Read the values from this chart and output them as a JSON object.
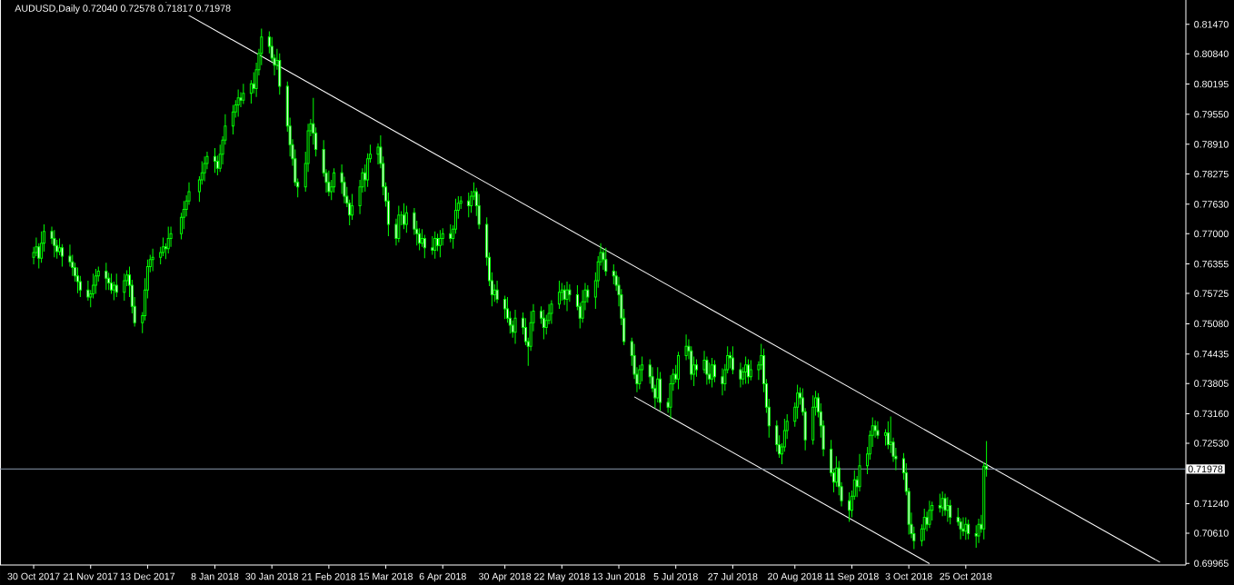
{
  "chart_data": {
    "type": "candlestick",
    "title": "AUDUSD,Daily 0.72040 0.72578 0.71817 0.71978",
    "color": "#00ff00",
    "x": [
      "2017-10-30",
      "2017-10-31",
      "2017-11-01",
      "2017-11-02",
      "2017-11-03",
      "2017-11-06",
      "2017-11-07",
      "2017-11-08",
      "2017-11-09",
      "2017-11-10",
      "2017-11-13",
      "2017-11-14",
      "2017-11-15",
      "2017-11-16",
      "2017-11-17",
      "2017-11-20",
      "2017-11-21",
      "2017-11-22",
      "2017-11-23",
      "2017-11-24",
      "2017-11-27",
      "2017-11-28",
      "2017-11-29",
      "2017-11-30",
      "2017-12-01",
      "2017-12-04",
      "2017-12-05",
      "2017-12-06",
      "2017-12-07",
      "2017-12-08",
      "2017-12-11",
      "2017-12-12",
      "2017-12-13",
      "2017-12-14",
      "2017-12-15",
      "2017-12-18",
      "2017-12-19",
      "2017-12-20",
      "2017-12-21",
      "2017-12-22",
      "2017-12-26",
      "2017-12-27",
      "2017-12-28",
      "2017-12-29",
      "2018-01-02",
      "2018-01-03",
      "2018-01-04",
      "2018-01-05",
      "2018-01-08",
      "2018-01-09",
      "2018-01-10",
      "2018-01-11",
      "2018-01-12",
      "2018-01-15",
      "2018-01-16",
      "2018-01-17",
      "2018-01-18",
      "2018-01-19",
      "2018-01-22",
      "2018-01-23",
      "2018-01-24",
      "2018-01-25",
      "2018-01-26",
      "2018-01-29",
      "2018-01-30",
      "2018-01-31",
      "2018-02-01",
      "2018-02-02",
      "2018-02-05",
      "2018-02-06",
      "2018-02-07",
      "2018-02-08",
      "2018-02-09",
      "2018-02-12",
      "2018-02-13",
      "2018-02-14",
      "2018-02-15",
      "2018-02-16",
      "2018-02-19",
      "2018-02-20",
      "2018-02-21",
      "2018-02-22",
      "2018-02-23",
      "2018-02-26",
      "2018-02-27",
      "2018-02-28",
      "2018-03-01",
      "2018-03-02",
      "2018-03-05",
      "2018-03-06",
      "2018-03-07",
      "2018-03-08",
      "2018-03-09",
      "2018-03-12",
      "2018-03-13",
      "2018-03-14",
      "2018-03-15",
      "2018-03-16",
      "2018-03-19",
      "2018-03-20",
      "2018-03-21",
      "2018-03-22",
      "2018-03-23",
      "2018-03-26",
      "2018-03-27",
      "2018-03-28",
      "2018-03-29",
      "2018-03-30",
      "2018-04-02",
      "2018-04-03",
      "2018-04-04",
      "2018-04-05",
      "2018-04-06",
      "2018-04-09",
      "2018-04-10",
      "2018-04-11",
      "2018-04-12",
      "2018-04-13",
      "2018-04-16",
      "2018-04-17",
      "2018-04-18",
      "2018-04-19",
      "2018-04-20",
      "2018-04-23",
      "2018-04-24",
      "2018-04-25",
      "2018-04-26",
      "2018-04-27",
      "2018-04-30",
      "2018-05-01",
      "2018-05-02",
      "2018-05-03",
      "2018-05-04",
      "2018-05-07",
      "2018-05-08",
      "2018-05-09",
      "2018-05-10",
      "2018-05-11",
      "2018-05-14",
      "2018-05-15",
      "2018-05-16",
      "2018-05-17",
      "2018-05-18",
      "2018-05-21",
      "2018-05-22",
      "2018-05-23",
      "2018-05-24",
      "2018-05-25",
      "2018-05-28",
      "2018-05-29",
      "2018-05-30",
      "2018-05-31",
      "2018-06-01",
      "2018-06-04",
      "2018-06-05",
      "2018-06-06",
      "2018-06-07",
      "2018-06-08",
      "2018-06-11",
      "2018-06-12",
      "2018-06-13",
      "2018-06-14",
      "2018-06-15",
      "2018-06-18",
      "2018-06-19",
      "2018-06-20",
      "2018-06-21",
      "2018-06-22",
      "2018-06-25",
      "2018-06-26",
      "2018-06-27",
      "2018-06-28",
      "2018-06-29",
      "2018-07-02",
      "2018-07-03",
      "2018-07-04",
      "2018-07-05",
      "2018-07-06",
      "2018-07-09",
      "2018-07-10",
      "2018-07-11",
      "2018-07-12",
      "2018-07-13",
      "2018-07-16",
      "2018-07-17",
      "2018-07-18",
      "2018-07-19",
      "2018-07-20",
      "2018-07-23",
      "2018-07-24",
      "2018-07-25",
      "2018-07-26",
      "2018-07-27",
      "2018-07-30",
      "2018-07-31",
      "2018-08-01",
      "2018-08-02",
      "2018-08-03",
      "2018-08-06",
      "2018-08-07",
      "2018-08-08",
      "2018-08-09",
      "2018-08-10",
      "2018-08-13",
      "2018-08-14",
      "2018-08-15",
      "2018-08-16",
      "2018-08-17",
      "2018-08-20",
      "2018-08-21",
      "2018-08-22",
      "2018-08-23",
      "2018-08-24",
      "2018-08-27",
      "2018-08-28",
      "2018-08-29",
      "2018-08-30",
      "2018-08-31",
      "2018-09-03",
      "2018-09-04",
      "2018-09-05",
      "2018-09-06",
      "2018-09-07",
      "2018-09-10",
      "2018-09-11",
      "2018-09-12",
      "2018-09-13",
      "2018-09-14",
      "2018-09-17",
      "2018-09-18",
      "2018-09-19",
      "2018-09-20",
      "2018-09-21",
      "2018-09-24",
      "2018-09-25",
      "2018-09-26",
      "2018-09-27",
      "2018-09-28",
      "2018-10-01",
      "2018-10-02",
      "2018-10-03",
      "2018-10-04",
      "2018-10-05",
      "2018-10-08",
      "2018-10-09",
      "2018-10-10",
      "2018-10-11",
      "2018-10-12",
      "2018-10-15",
      "2018-10-16",
      "2018-10-17",
      "2018-10-18",
      "2018-10-19",
      "2018-10-22",
      "2018-10-23",
      "2018-10-24",
      "2018-10-25",
      "2018-10-26",
      "2018-10-29",
      "2018-10-30",
      "2018-10-31",
      "2018-11-01",
      "2018-11-02"
    ],
    "ohlc": [
      [
        0.765,
        0.7672,
        0.7635,
        0.766
      ],
      [
        0.766,
        0.7692,
        0.7652,
        0.7672
      ],
      [
        0.7672,
        0.768,
        0.7626,
        0.7648
      ],
      [
        0.7648,
        0.7705,
        0.7638,
        0.768
      ],
      [
        0.768,
        0.772,
        0.7662,
        0.7705
      ],
      [
        0.7705,
        0.7715,
        0.7678,
        0.769
      ],
      [
        0.769,
        0.7708,
        0.765,
        0.7675
      ],
      [
        0.7675,
        0.7687,
        0.7647,
        0.7662
      ],
      [
        0.7662,
        0.769,
        0.7654,
        0.767
      ],
      [
        0.767,
        0.7678,
        0.763,
        0.7652
      ],
      [
        0.7652,
        0.7677,
        0.763,
        0.764
      ],
      [
        0.764,
        0.7655,
        0.761,
        0.7628
      ],
      [
        0.7628,
        0.7638,
        0.7598,
        0.761
      ],
      [
        0.761,
        0.7628,
        0.7573,
        0.7598
      ],
      [
        0.7598,
        0.761,
        0.7565,
        0.758
      ],
      [
        0.758,
        0.76,
        0.7557,
        0.7565
      ],
      [
        0.7565,
        0.758,
        0.7543,
        0.7572
      ],
      [
        0.7572,
        0.7615,
        0.7562,
        0.759
      ],
      [
        0.759,
        0.7625,
        0.7572,
        0.761
      ],
      [
        0.761,
        0.763,
        0.7598,
        0.762
      ],
      [
        0.762,
        0.7638,
        0.758,
        0.7605
      ],
      [
        0.7605,
        0.7617,
        0.758,
        0.7595
      ],
      [
        0.7595,
        0.7615,
        0.7572,
        0.758
      ],
      [
        0.758,
        0.7598,
        0.7558,
        0.759
      ],
      [
        0.759,
        0.7615,
        0.7565,
        0.7575
      ],
      [
        0.7575,
        0.7615,
        0.7557,
        0.76
      ],
      [
        0.76,
        0.7622,
        0.7588,
        0.7612
      ],
      [
        0.7612,
        0.763,
        0.7565,
        0.759
      ],
      [
        0.759,
        0.7602,
        0.753,
        0.7545
      ],
      [
        0.7545,
        0.7565,
        0.7502,
        0.751
      ],
      [
        0.751,
        0.7533,
        0.7488,
        0.7525
      ],
      [
        0.7525,
        0.7605,
        0.7515,
        0.758
      ],
      [
        0.758,
        0.7645,
        0.7562,
        0.763
      ],
      [
        0.763,
        0.7655,
        0.7618,
        0.7645
      ],
      [
        0.7645,
        0.7668,
        0.762,
        0.765
      ],
      [
        0.765,
        0.7672,
        0.7635,
        0.766
      ],
      [
        0.766,
        0.7692,
        0.7652,
        0.7672
      ],
      [
        0.7672,
        0.768,
        0.7646,
        0.7668
      ],
      [
        0.7668,
        0.7715,
        0.7658,
        0.769
      ],
      [
        0.769,
        0.7715,
        0.7672,
        0.77
      ],
      [
        0.77,
        0.7745,
        0.7688,
        0.7735
      ],
      [
        0.7735,
        0.777,
        0.771,
        0.7752
      ],
      [
        0.7752,
        0.7782,
        0.7737,
        0.777
      ],
      [
        0.777,
        0.781,
        0.7762,
        0.779
      ],
      [
        0.779,
        0.7823,
        0.7768,
        0.7815
      ],
      [
        0.7815,
        0.7855,
        0.7805,
        0.783
      ],
      [
        0.783,
        0.7865,
        0.7812,
        0.785
      ],
      [
        0.785,
        0.7875,
        0.7838,
        0.7865
      ],
      [
        0.7865,
        0.7883,
        0.783,
        0.7855
      ],
      [
        0.7855,
        0.7867,
        0.7825,
        0.784
      ],
      [
        0.784,
        0.789,
        0.7832,
        0.787
      ],
      [
        0.787,
        0.7908,
        0.7848,
        0.79
      ],
      [
        0.79,
        0.7955,
        0.789,
        0.793
      ],
      [
        0.793,
        0.7975,
        0.7912,
        0.796
      ],
      [
        0.796,
        0.7985,
        0.7948,
        0.7975
      ],
      [
        0.7975,
        0.8008,
        0.795,
        0.799
      ],
      [
        0.799,
        0.8002,
        0.797,
        0.7985
      ],
      [
        0.7985,
        0.802,
        0.7977,
        0.8
      ],
      [
        0.8,
        0.8028,
        0.7978,
        0.802
      ],
      [
        0.802,
        0.8045,
        0.8,
        0.801
      ],
      [
        0.801,
        0.8065,
        0.7992,
        0.805
      ],
      [
        0.805,
        0.8095,
        0.8038,
        0.8085
      ],
      [
        0.8085,
        0.8138,
        0.806,
        0.812
      ],
      [
        0.812,
        0.8132,
        0.8085,
        0.81
      ],
      [
        0.81,
        0.812,
        0.8067,
        0.8075
      ],
      [
        0.8075,
        0.8083,
        0.8038,
        0.806
      ],
      [
        0.806,
        0.8095,
        0.805,
        0.807
      ],
      [
        0.807,
        0.8085,
        0.7997,
        0.8015
      ],
      [
        0.8015,
        0.8025,
        0.7918,
        0.793
      ],
      [
        0.793,
        0.7948,
        0.7865,
        0.789
      ],
      [
        0.789,
        0.7902,
        0.7845,
        0.786
      ],
      [
        0.786,
        0.788,
        0.7802,
        0.781
      ],
      [
        0.781,
        0.7818,
        0.7778,
        0.78
      ],
      [
        0.78,
        0.7875,
        0.779,
        0.785
      ],
      [
        0.785,
        0.7935,
        0.7832,
        0.792
      ],
      [
        0.792,
        0.7945,
        0.7908,
        0.7935
      ],
      [
        0.7935,
        0.799,
        0.789,
        0.7915
      ],
      [
        0.7915,
        0.7927,
        0.7865,
        0.788
      ],
      [
        0.788,
        0.79,
        0.7822,
        0.783
      ],
      [
        0.783,
        0.7838,
        0.7788,
        0.781
      ],
      [
        0.781,
        0.7835,
        0.778,
        0.779
      ],
      [
        0.779,
        0.7815,
        0.7772,
        0.78
      ],
      [
        0.78,
        0.784,
        0.7788,
        0.783
      ],
      [
        0.783,
        0.7848,
        0.7785,
        0.781
      ],
      [
        0.781,
        0.7822,
        0.7765,
        0.778
      ],
      [
        0.778,
        0.78,
        0.7757,
        0.7765
      ],
      [
        0.7765,
        0.7773,
        0.7718,
        0.774
      ],
      [
        0.774,
        0.7785,
        0.773,
        0.776
      ],
      [
        0.776,
        0.7815,
        0.7742,
        0.78
      ],
      [
        0.78,
        0.784,
        0.7788,
        0.783
      ],
      [
        0.783,
        0.7848,
        0.779,
        0.7815
      ],
      [
        0.7815,
        0.7872,
        0.78,
        0.786
      ],
      [
        0.786,
        0.789,
        0.7852,
        0.787
      ],
      [
        0.787,
        0.7893,
        0.7848,
        0.7885
      ],
      [
        0.7885,
        0.791,
        0.784,
        0.785
      ],
      [
        0.785,
        0.7865,
        0.7782,
        0.78
      ],
      [
        0.78,
        0.781,
        0.7758,
        0.777
      ],
      [
        0.777,
        0.7788,
        0.7695,
        0.772
      ],
      [
        0.772,
        0.7732,
        0.7675,
        0.769
      ],
      [
        0.769,
        0.776,
        0.7682,
        0.774
      ],
      [
        0.774,
        0.7748,
        0.7718,
        0.774
      ],
      [
        0.774,
        0.7765,
        0.771,
        0.772
      ],
      [
        0.772,
        0.776,
        0.7702,
        0.7745
      ],
      [
        0.7745,
        0.7755,
        0.7698,
        0.771
      ],
      [
        0.771,
        0.7728,
        0.7675,
        0.77
      ],
      [
        0.77,
        0.7712,
        0.7665,
        0.768
      ],
      [
        0.768,
        0.771,
        0.7672,
        0.769
      ],
      [
        0.769,
        0.7698,
        0.7648,
        0.767
      ],
      [
        0.767,
        0.7695,
        0.7655,
        0.7665
      ],
      [
        0.7665,
        0.7705,
        0.7647,
        0.769
      ],
      [
        0.769,
        0.77,
        0.7663,
        0.7675
      ],
      [
        0.7675,
        0.7708,
        0.765,
        0.769
      ],
      [
        0.769,
        0.7712,
        0.7675,
        0.77
      ],
      [
        0.77,
        0.772,
        0.7682,
        0.769
      ],
      [
        0.769,
        0.7718,
        0.7668,
        0.771
      ],
      [
        0.771,
        0.7775,
        0.77,
        0.775
      ],
      [
        0.775,
        0.778,
        0.7732,
        0.7765
      ],
      [
        0.7765,
        0.778,
        0.7753,
        0.777
      ],
      [
        0.777,
        0.7788,
        0.7735,
        0.776
      ],
      [
        0.776,
        0.7792,
        0.7745,
        0.778
      ],
      [
        0.778,
        0.781,
        0.7772,
        0.779
      ],
      [
        0.779,
        0.7798,
        0.7738,
        0.776
      ],
      [
        0.776,
        0.7785,
        0.771,
        0.772
      ],
      [
        0.772,
        0.7735,
        0.7632,
        0.765
      ],
      [
        0.765,
        0.766,
        0.7588,
        0.76
      ],
      [
        0.76,
        0.7618,
        0.7545,
        0.757
      ],
      [
        0.757,
        0.7592,
        0.7555,
        0.758
      ],
      [
        0.758,
        0.76,
        0.7552,
        0.756
      ],
      [
        0.756,
        0.7568,
        0.7518,
        0.754
      ],
      [
        0.754,
        0.7565,
        0.751,
        0.752
      ],
      [
        0.752,
        0.7535,
        0.7487,
        0.7505
      ],
      [
        0.7505,
        0.7515,
        0.7478,
        0.749
      ],
      [
        0.749,
        0.7538,
        0.7465,
        0.752
      ],
      [
        0.752,
        0.7532,
        0.7485,
        0.75
      ],
      [
        0.75,
        0.752,
        0.7462,
        0.747
      ],
      [
        0.747,
        0.7478,
        0.7418,
        0.746
      ],
      [
        0.746,
        0.7535,
        0.745,
        0.751
      ],
      [
        0.751,
        0.755,
        0.7492,
        0.7535
      ],
      [
        0.7535,
        0.7545,
        0.7508,
        0.752
      ],
      [
        0.752,
        0.7538,
        0.7475,
        0.75
      ],
      [
        0.75,
        0.7527,
        0.7485,
        0.7515
      ],
      [
        0.7515,
        0.755,
        0.7507,
        0.753
      ],
      [
        0.753,
        0.7558,
        0.7508,
        0.755
      ],
      [
        0.755,
        0.76,
        0.754,
        0.7575
      ],
      [
        0.7575,
        0.7595,
        0.7557,
        0.758
      ],
      [
        0.758,
        0.759,
        0.7548,
        0.756
      ],
      [
        0.756,
        0.7598,
        0.7535,
        0.758
      ],
      [
        0.758,
        0.7592,
        0.7555,
        0.757
      ],
      [
        0.757,
        0.759,
        0.7537,
        0.7545
      ],
      [
        0.7545,
        0.7553,
        0.7498,
        0.752
      ],
      [
        0.752,
        0.758,
        0.751,
        0.7555
      ],
      [
        0.7555,
        0.7595,
        0.7537,
        0.758
      ],
      [
        0.758,
        0.759,
        0.7553,
        0.7565
      ],
      [
        0.7565,
        0.7618,
        0.754,
        0.76
      ],
      [
        0.76,
        0.7652,
        0.7585,
        0.764
      ],
      [
        0.764,
        0.768,
        0.7632,
        0.766
      ],
      [
        0.766,
        0.7668,
        0.7623,
        0.7645
      ],
      [
        0.7645,
        0.767,
        0.761,
        0.762
      ],
      [
        0.762,
        0.7635,
        0.7592,
        0.761
      ],
      [
        0.761,
        0.762,
        0.7578,
        0.759
      ],
      [
        0.759,
        0.7608,
        0.7545,
        0.757
      ],
      [
        0.757,
        0.7582,
        0.7505,
        0.752
      ],
      [
        0.752,
        0.754,
        0.7462,
        0.747
      ],
      [
        0.747,
        0.7478,
        0.7418,
        0.744
      ],
      [
        0.744,
        0.7465,
        0.739,
        0.74
      ],
      [
        0.74,
        0.7415,
        0.7362,
        0.738
      ],
      [
        0.738,
        0.742,
        0.7368,
        0.741
      ],
      [
        0.741,
        0.7438,
        0.7385,
        0.742
      ],
      [
        0.742,
        0.7432,
        0.738,
        0.7395
      ],
      [
        0.7395,
        0.7415,
        0.7362,
        0.737
      ],
      [
        0.737,
        0.7378,
        0.7328,
        0.735
      ],
      [
        0.735,
        0.7415,
        0.734,
        0.739
      ],
      [
        0.739,
        0.7405,
        0.7322,
        0.734
      ],
      [
        0.734,
        0.735,
        0.7318,
        0.733
      ],
      [
        0.733,
        0.7398,
        0.7305,
        0.738
      ],
      [
        0.738,
        0.7412,
        0.7365,
        0.74
      ],
      [
        0.74,
        0.742,
        0.7382,
        0.739
      ],
      [
        0.739,
        0.7448,
        0.7368,
        0.744
      ],
      [
        0.744,
        0.7485,
        0.743,
        0.746
      ],
      [
        0.746,
        0.7475,
        0.7432,
        0.745
      ],
      [
        0.745,
        0.746,
        0.7388,
        0.74
      ],
      [
        0.74,
        0.7438,
        0.7375,
        0.742
      ],
      [
        0.742,
        0.7432,
        0.7395,
        0.741
      ],
      [
        0.741,
        0.745,
        0.7402,
        0.743
      ],
      [
        0.743,
        0.7438,
        0.7378,
        0.74
      ],
      [
        0.74,
        0.7425,
        0.738,
        0.739
      ],
      [
        0.739,
        0.7435,
        0.7372,
        0.742
      ],
      [
        0.742,
        0.743,
        0.7383,
        0.7395
      ],
      [
        0.7395,
        0.7413,
        0.7355,
        0.738
      ],
      [
        0.738,
        0.7422,
        0.7365,
        0.741
      ],
      [
        0.741,
        0.746,
        0.7402,
        0.744
      ],
      [
        0.744,
        0.7448,
        0.7413,
        0.7435
      ],
      [
        0.7435,
        0.746,
        0.74,
        0.741
      ],
      [
        0.741,
        0.7425,
        0.7372,
        0.739
      ],
      [
        0.739,
        0.7415,
        0.7378,
        0.7405
      ],
      [
        0.7405,
        0.7438,
        0.738,
        0.742
      ],
      [
        0.742,
        0.7432,
        0.738,
        0.7395
      ],
      [
        0.7395,
        0.743,
        0.7387,
        0.741
      ],
      [
        0.741,
        0.7428,
        0.7388,
        0.742
      ],
      [
        0.742,
        0.7465,
        0.741,
        0.744
      ],
      [
        0.744,
        0.7455,
        0.7362,
        0.738
      ],
      [
        0.738,
        0.739,
        0.7318,
        0.733
      ],
      [
        0.733,
        0.7348,
        0.7265,
        0.729
      ],
      [
        0.729,
        0.7302,
        0.7235,
        0.725
      ],
      [
        0.725,
        0.727,
        0.7222,
        0.723
      ],
      [
        0.723,
        0.7253,
        0.7208,
        0.7245
      ],
      [
        0.7245,
        0.7305,
        0.7235,
        0.728
      ],
      [
        0.728,
        0.7315,
        0.7262,
        0.73
      ],
      [
        0.73,
        0.734,
        0.7288,
        0.733
      ],
      [
        0.733,
        0.7378,
        0.7305,
        0.736
      ],
      [
        0.736,
        0.7372,
        0.7335,
        0.735
      ],
      [
        0.735,
        0.737,
        0.7312,
        0.732
      ],
      [
        0.732,
        0.7328,
        0.7238,
        0.726
      ],
      [
        0.726,
        0.7355,
        0.725,
        0.733
      ],
      [
        0.733,
        0.7365,
        0.7312,
        0.735
      ],
      [
        0.735,
        0.736,
        0.7308,
        0.732
      ],
      [
        0.732,
        0.7338,
        0.7265,
        0.729
      ],
      [
        0.729,
        0.7302,
        0.7225,
        0.724
      ],
      [
        0.724,
        0.726,
        0.7182,
        0.719
      ],
      [
        0.719,
        0.7198,
        0.7148,
        0.717
      ],
      [
        0.717,
        0.7225,
        0.716,
        0.72
      ],
      [
        0.72,
        0.7215,
        0.7142,
        0.716
      ],
      [
        0.716,
        0.717,
        0.7118,
        0.713
      ],
      [
        0.713,
        0.7148,
        0.7085,
        0.711
      ],
      [
        0.711,
        0.7152,
        0.7095,
        0.714
      ],
      [
        0.714,
        0.7195,
        0.7132,
        0.7175
      ],
      [
        0.7175,
        0.7183,
        0.7138,
        0.716
      ],
      [
        0.716,
        0.723,
        0.715,
        0.7205
      ],
      [
        0.7205,
        0.7245,
        0.7187,
        0.723
      ],
      [
        0.723,
        0.728,
        0.7218,
        0.727
      ],
      [
        0.727,
        0.7308,
        0.7245,
        0.729
      ],
      [
        0.729,
        0.7302,
        0.7265,
        0.728
      ],
      [
        0.728,
        0.73,
        0.7262,
        0.727
      ],
      [
        0.727,
        0.7283,
        0.7248,
        0.7275
      ],
      [
        0.7275,
        0.73,
        0.724,
        0.725
      ],
      [
        0.725,
        0.731,
        0.7232,
        0.7255
      ],
      [
        0.7255,
        0.7265,
        0.7213,
        0.7225
      ],
      [
        0.7225,
        0.7243,
        0.7195,
        0.722
      ],
      [
        0.722,
        0.7232,
        0.7175,
        0.719
      ],
      [
        0.719,
        0.721,
        0.7142,
        0.715
      ],
      [
        0.715,
        0.7158,
        0.7058,
        0.708
      ],
      [
        0.708,
        0.7105,
        0.705,
        0.706
      ],
      [
        0.706,
        0.7075,
        0.7027,
        0.7045
      ],
      [
        0.7045,
        0.708,
        0.7033,
        0.707
      ],
      [
        0.707,
        0.7113,
        0.7045,
        0.7095
      ],
      [
        0.7095,
        0.7107,
        0.7065,
        0.708
      ],
      [
        0.708,
        0.713,
        0.7072,
        0.711
      ],
      [
        0.711,
        0.7128,
        0.7088,
        0.712
      ],
      [
        0.712,
        0.7145,
        0.7105,
        0.7115
      ],
      [
        0.7115,
        0.715,
        0.7097,
        0.7135
      ],
      [
        0.7135,
        0.7145,
        0.7098,
        0.711
      ],
      [
        0.711,
        0.7138,
        0.7085,
        0.712
      ],
      [
        0.712,
        0.7132,
        0.708,
        0.7095
      ],
      [
        0.7095,
        0.7115,
        0.7077,
        0.7085
      ],
      [
        0.7085,
        0.7093,
        0.7048,
        0.707
      ],
      [
        0.707,
        0.7095,
        0.7055,
        0.7065
      ],
      [
        0.7065,
        0.7095,
        0.7047,
        0.708
      ],
      [
        0.708,
        0.709,
        0.7048,
        0.706
      ],
      [
        0.706,
        0.7078,
        0.703,
        0.7055
      ],
      [
        0.7055,
        0.7092,
        0.704,
        0.708
      ],
      [
        0.708,
        0.71,
        0.7062,
        0.707
      ],
      [
        0.707,
        0.7212,
        0.7048,
        0.7204
      ],
      [
        0.7204,
        0.72578,
        0.71817,
        0.71978
      ]
    ],
    "series": [
      {
        "type": "line",
        "x": [
          "2017-12-20",
          "2019-01-08"
        ],
        "values": [
          0.8194,
          0.6999
        ],
        "color": "#ffffff"
      },
      {
        "type": "line",
        "x": [
          "2018-06-19",
          "2018-10-11"
        ],
        "values": [
          0.7352,
          0.6996
        ],
        "color": "#ffffff"
      }
    ],
    "ref_lines": [
      {
        "axis": "y",
        "value": 0.71978,
        "label": "0.71978",
        "color": "#8c9bb0"
      }
    ],
    "xlim": [
      "2017-10-17",
      "2019-01-18"
    ],
    "ylim": [
      0.6993,
      0.8199
    ],
    "xticks": [
      {
        "value": "2017-10-30",
        "label": "30 Oct 2017"
      },
      {
        "value": "2017-11-21",
        "label": "21 Nov 2017"
      },
      {
        "value": "2017-12-13",
        "label": "13 Dec 2017"
      },
      {
        "value": "2018-01-08",
        "label": "8 Jan 2018"
      },
      {
        "value": "2018-01-30",
        "label": "30 Jan 2018"
      },
      {
        "value": "2018-02-21",
        "label": "21 Feb 2018"
      },
      {
        "value": "2018-03-15",
        "label": "15 Mar 2018"
      },
      {
        "value": "2018-04-06",
        "label": "6 Apr 2018"
      },
      {
        "value": "2018-04-30",
        "label": "30 Apr 2018"
      },
      {
        "value": "2018-05-22",
        "label": "22 May 2018"
      },
      {
        "value": "2018-06-13",
        "label": "13 Jun 2018"
      },
      {
        "value": "2018-07-05",
        "label": "5 Jul 2018"
      },
      {
        "value": "2018-07-27",
        "label": "27 Jul 2018"
      },
      {
        "value": "2018-08-20",
        "label": "20 Aug 2018"
      },
      {
        "value": "2018-09-11",
        "label": "11 Sep 2018"
      },
      {
        "value": "2018-10-03",
        "label": "3 Oct 2018"
      },
      {
        "value": "2018-10-25",
        "label": "25 Oct 2018"
      }
    ],
    "yticks": [
      {
        "value": 0.8147,
        "label": "0.81470"
      },
      {
        "value": 0.8084,
        "label": "0.80840"
      },
      {
        "value": 0.80195,
        "label": "0.80195"
      },
      {
        "value": 0.7955,
        "label": "0.79550"
      },
      {
        "value": 0.7891,
        "label": "0.78910"
      },
      {
        "value": 0.78275,
        "label": "0.78275"
      },
      {
        "value": 0.7763,
        "label": "0.77630"
      },
      {
        "value": 0.77,
        "label": "0.77000"
      },
      {
        "value": 0.76355,
        "label": "0.76355"
      },
      {
        "value": 0.75725,
        "label": "0.75725"
      },
      {
        "value": 0.7508,
        "label": "0.75080"
      },
      {
        "value": 0.74435,
        "label": "0.74435"
      },
      {
        "value": 0.73805,
        "label": "0.73805"
      },
      {
        "value": 0.7316,
        "label": "0.73160"
      },
      {
        "value": 0.7253,
        "label": "0.72530"
      },
      {
        "value": 0.7124,
        "label": "0.71240"
      },
      {
        "value": 0.7061,
        "label": "0.70610"
      },
      {
        "value": 0.69965,
        "label": "0.69965"
      }
    ]
  }
}
